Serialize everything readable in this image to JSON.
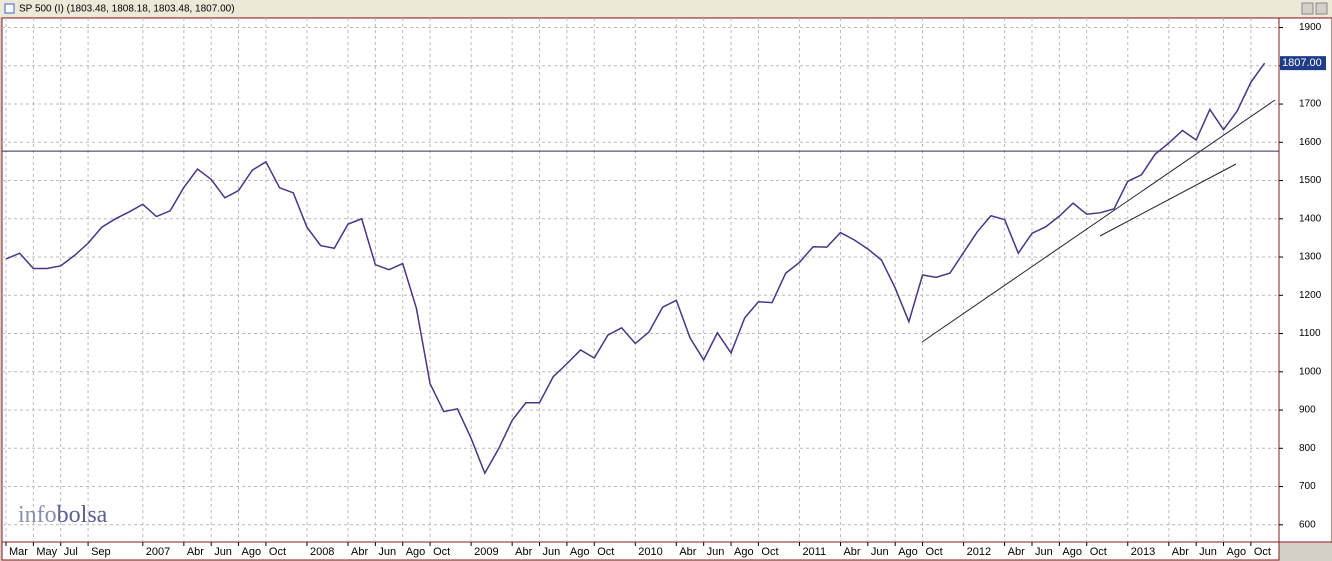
{
  "chart_data": {
    "type": "line",
    "title": "SP 500 (I) (1803.48, 1808.18, 1803.48, 1807.00)",
    "watermark": [
      "info",
      "bolsa"
    ],
    "categories": [
      "Mar",
      null,
      "May",
      null,
      "Jul",
      null,
      "Sep",
      null,
      null,
      null,
      "2007",
      null,
      null,
      "Abr",
      null,
      "Jun",
      null,
      "Ago",
      null,
      "Oct",
      null,
      null,
      "2008",
      null,
      null,
      "Abr",
      null,
      "Jun",
      null,
      "Ago",
      null,
      "Oct",
      null,
      null,
      "2009",
      null,
      null,
      "Abr",
      null,
      "Jun",
      null,
      "Ago",
      null,
      "Oct",
      null,
      null,
      "2010",
      null,
      null,
      "Abr",
      null,
      "Jun",
      null,
      "Ago",
      null,
      "Oct",
      null,
      null,
      "2011",
      null,
      null,
      "Abr",
      null,
      "Jun",
      null,
      "Ago",
      null,
      "Oct",
      null,
      null,
      "2012",
      null,
      null,
      "Abr",
      null,
      "Jun",
      null,
      "Ago",
      null,
      "Oct",
      null,
      null,
      "2013",
      null,
      null,
      "Abr",
      null,
      "Jun",
      null,
      "Ago",
      null,
      "Oct",
      null
    ],
    "series": [
      {
        "name": "SP 500",
        "color": "#4a3585",
        "values": [
          1295,
          1310,
          1270,
          1270,
          1277,
          1304,
          1336,
          1378,
          1400,
          1418,
          1438,
          1406,
          1421,
          1482,
          1530,
          1503,
          1455,
          1474,
          1527,
          1549,
          1481,
          1468,
          1378,
          1330,
          1323,
          1386,
          1400,
          1280,
          1267,
          1283,
          1166,
          969,
          896,
          903,
          826,
          735,
          798,
          873,
          919,
          919,
          987,
          1021,
          1057,
          1036,
          1096,
          1115,
          1074,
          1104,
          1169,
          1187,
          1089,
          1031,
          1102,
          1049,
          1141,
          1183,
          1181,
          1258,
          1286,
          1327,
          1326,
          1364,
          1345,
          1321,
          1292,
          1219,
          1131,
          1253,
          1247,
          1258,
          1312,
          1366,
          1408,
          1398,
          1310,
          1362,
          1379,
          1407,
          1441,
          1412,
          1416,
          1426,
          1498,
          1515,
          1569,
          1598,
          1631,
          1606,
          1686,
          1633,
          1682,
          1757,
          1807
        ]
      }
    ],
    "last_label": "1807.00",
    "hline": 1577,
    "ylim": [
      555,
      1925
    ],
    "yticks": [
      600,
      700,
      800,
      900,
      1000,
      1100,
      1200,
      1300,
      1400,
      1500,
      1600,
      1700,
      1800,
      1900
    ],
    "grid": true
  }
}
